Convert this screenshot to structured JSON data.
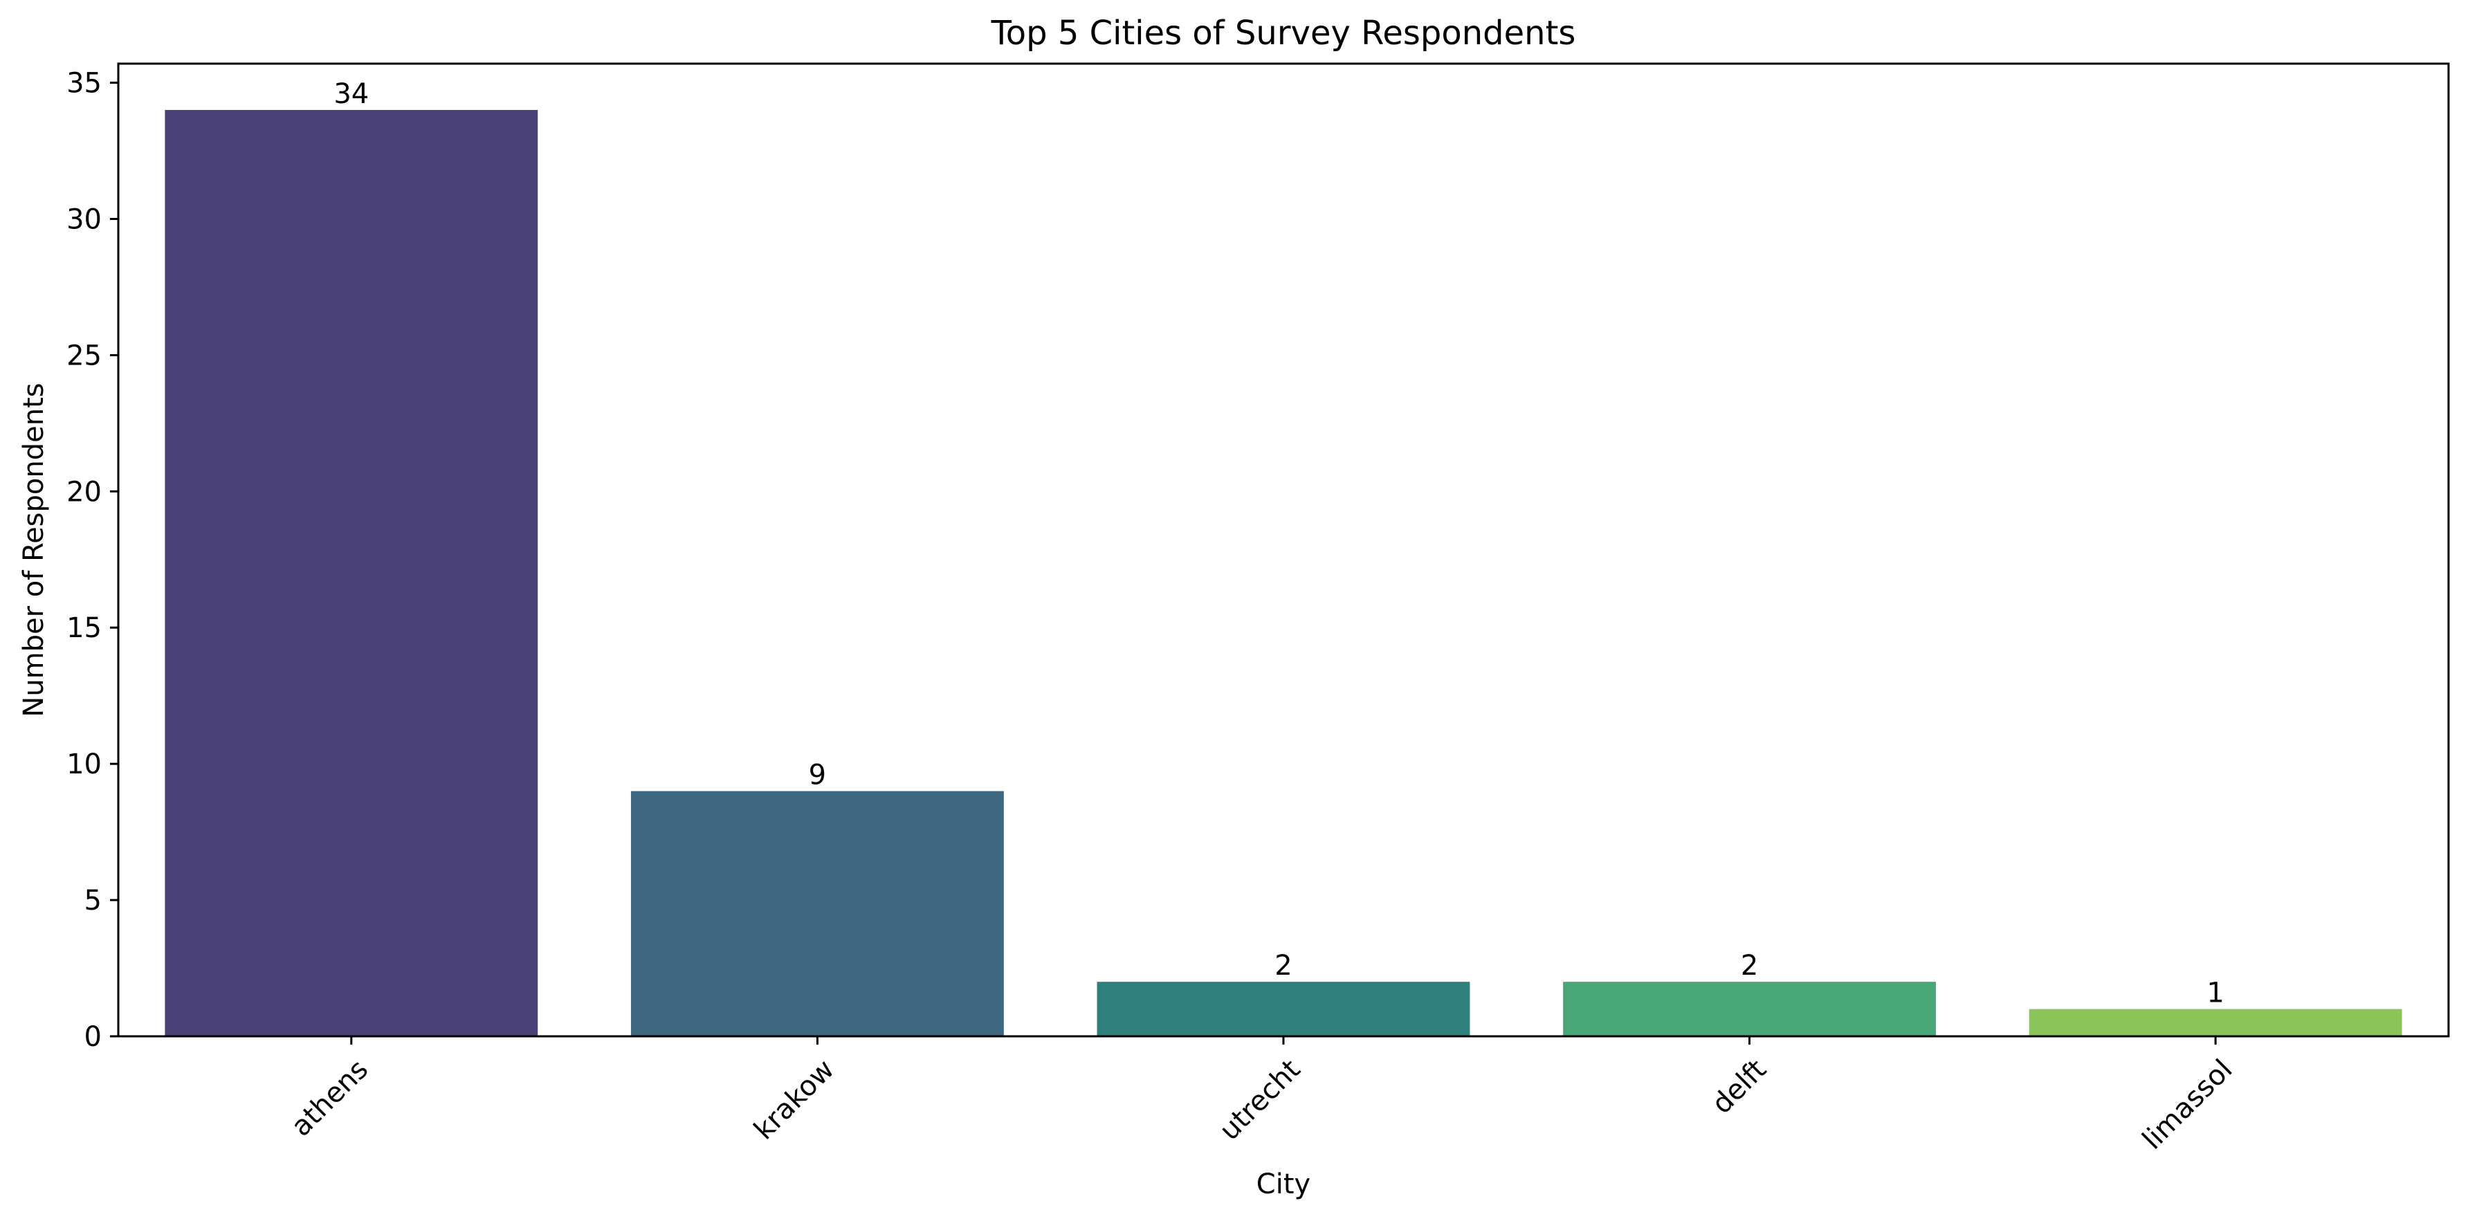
{
  "chart_data": {
    "type": "bar",
    "title": "Top 5 Cities of Survey Respondents",
    "xlabel": "City",
    "ylabel": "Number of Respondents",
    "categories": [
      "athens",
      "krakow",
      "utrecht",
      "delft",
      "limassol"
    ],
    "values": [
      34,
      9,
      2,
      2,
      1
    ],
    "data_labels": [
      "34",
      "9",
      "2",
      "2",
      "1"
    ],
    "colors": [
      "#4a4277",
      "#3f6780",
      "#2f807c",
      "#48a677",
      "#8bc55a"
    ],
    "ylim": [
      0,
      35.7
    ],
    "yticks": [
      0,
      5,
      10,
      15,
      20,
      25,
      30,
      35
    ],
    "ytick_labels": [
      "0",
      "5",
      "10",
      "15",
      "20",
      "25",
      "30",
      "35"
    ],
    "grid": false,
    "legend": "none",
    "xtick_rotation_deg": 45
  }
}
